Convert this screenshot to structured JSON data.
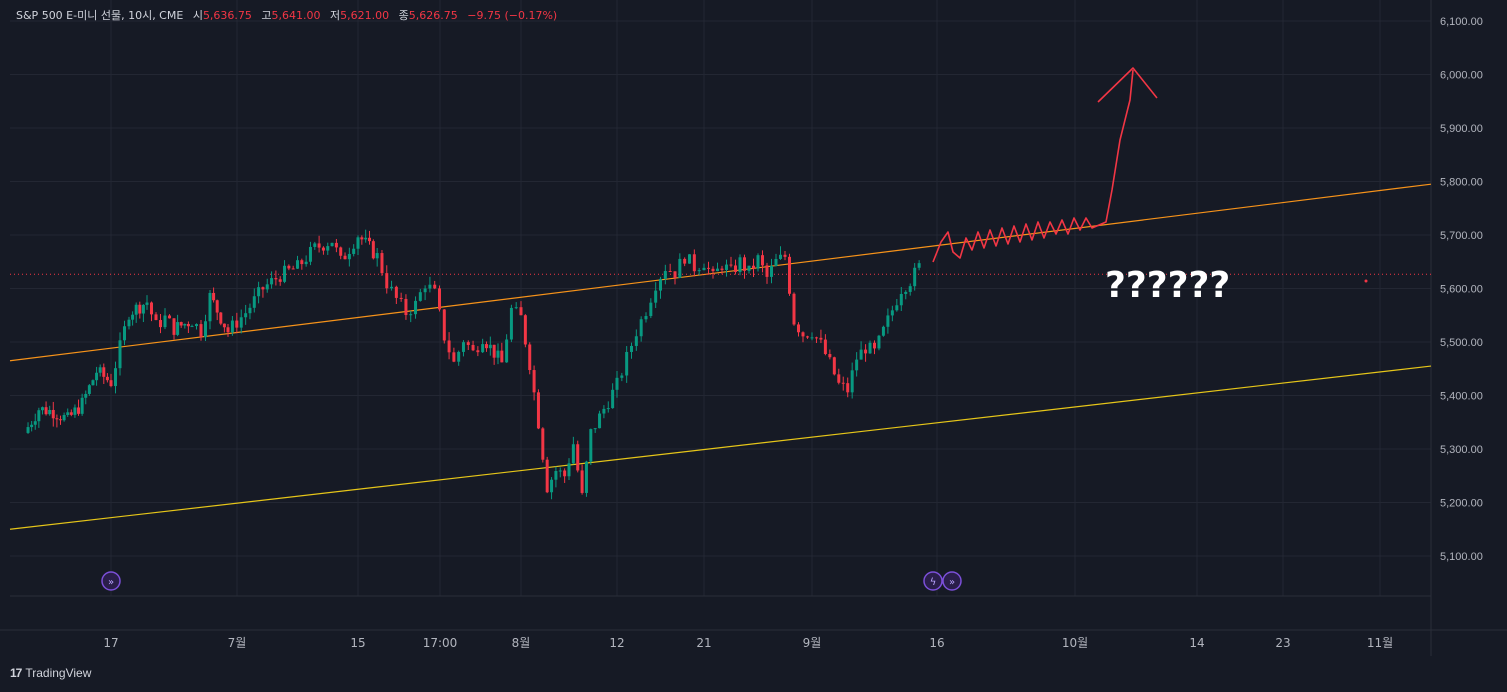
{
  "legend": {
    "symbol": "S&P 500 E-미니 선물, 10시, CME",
    "open_label": "시",
    "open": "5,636.75",
    "high_label": "고",
    "high": "5,641.00",
    "low_label": "저",
    "low": "5,621.00",
    "close_label": "종",
    "close": "5,626.75",
    "change": "−9.75 (−0.17%)"
  },
  "annotation_text": "??????",
  "footer": {
    "brand": "TradingView"
  },
  "colors": {
    "background": "#161a25",
    "up": "#089981",
    "down": "#f23645",
    "upper_trendline": "#f7931a",
    "lower_trendline": "#e6c619",
    "drawing": "#f23645",
    "grid": "#232733",
    "event_marker": "#7b4fd8"
  },
  "chart_data": {
    "type": "candlestick",
    "title": "S&P 500 E-미니 선물, 10시, CME",
    "x_ticks": [
      "17",
      "7월",
      "15",
      "17:00",
      "8월",
      "12",
      "21",
      "9월",
      "16",
      "10월",
      "14",
      "23",
      "11월"
    ],
    "y_ticks": [
      "6,100.00",
      "6,000.00",
      "5,900.00",
      "5,800.00",
      "5,700.00",
      "5,600.00",
      "5,500.00",
      "5,400.00",
      "5,300.00",
      "5,200.00",
      "5,100.00"
    ],
    "ylim": [
      5060,
      6120
    ],
    "last_price": 5626.75,
    "grid": true,
    "close_path": [
      [
        "2024-06-11",
        5330
      ],
      [
        "2024-06-12",
        5375
      ],
      [
        "2024-06-13",
        5370
      ],
      [
        "2024-06-14",
        5355
      ],
      [
        "2024-06-15",
        5385
      ],
      [
        "2024-06-16",
        5445
      ],
      [
        "2024-06-17",
        5425
      ],
      [
        "2024-06-18",
        5490
      ],
      [
        "2024-06-19",
        5555
      ],
      [
        "2024-06-21",
        5575
      ],
      [
        "2024-06-22",
        5530
      ],
      [
        "2024-06-23",
        5545
      ],
      [
        "2024-06-24",
        5525
      ],
      [
        "2024-06-26",
        5540
      ],
      [
        "2024-06-27",
        5520
      ],
      [
        "2024-06-28",
        5585
      ],
      [
        "2024-06-30",
        5520
      ],
      [
        "2024-07-02",
        5555
      ],
      [
        "2024-07-04",
        5600
      ],
      [
        "2024-07-06",
        5625
      ],
      [
        "2024-07-08",
        5640
      ],
      [
        "2024-07-10",
        5675
      ],
      [
        "2024-07-12",
        5690
      ],
      [
        "2024-07-13",
        5650
      ],
      [
        "2024-07-15",
        5700
      ],
      [
        "2024-07-17",
        5660
      ],
      [
        "2024-07-18",
        5610
      ],
      [
        "2024-07-19",
        5580
      ],
      [
        "2024-07-20",
        5555
      ],
      [
        "2024-07-21",
        5570
      ],
      [
        "2024-07-22",
        5610
      ],
      [
        "2024-07-23",
        5590
      ],
      [
        "2024-07-24",
        5510
      ],
      [
        "2024-07-25",
        5460
      ],
      [
        "2024-07-26",
        5505
      ],
      [
        "2024-07-27",
        5480
      ],
      [
        "2024-07-28",
        5510
      ],
      [
        "2024-07-30",
        5460
      ],
      [
        "2024-07-31",
        5560
      ],
      [
        "2024-08-01",
        5545
      ],
      [
        "2024-08-02",
        5460
      ],
      [
        "2024-08-03",
        5350
      ],
      [
        "2024-08-04",
        5230
      ],
      [
        "2024-08-05",
        5260
      ],
      [
        "2024-08-06",
        5250
      ],
      [
        "2024-08-07",
        5310
      ],
      [
        "2024-08-08",
        5210
      ],
      [
        "2024-08-09",
        5330
      ],
      [
        "2024-08-10",
        5360
      ],
      [
        "2024-08-11",
        5390
      ],
      [
        "2024-08-12",
        5420
      ],
      [
        "2024-08-13",
        5470
      ],
      [
        "2024-08-14",
        5520
      ],
      [
        "2024-08-15",
        5560
      ],
      [
        "2024-08-16",
        5610
      ],
      [
        "2024-08-17",
        5640
      ],
      [
        "2024-08-18",
        5630
      ],
      [
        "2024-08-19",
        5660
      ],
      [
        "2024-08-20",
        5640
      ],
      [
        "2024-08-21",
        5650
      ],
      [
        "2024-08-22",
        5620
      ],
      [
        "2024-08-23",
        5645
      ],
      [
        "2024-08-24",
        5630
      ],
      [
        "2024-08-25",
        5650
      ],
      [
        "2024-08-26",
        5630
      ],
      [
        "2024-08-27",
        5655
      ],
      [
        "2024-08-28",
        5620
      ],
      [
        "2024-08-29",
        5650
      ],
      [
        "2024-08-30",
        5660
      ],
      [
        "2024-08-31",
        5540
      ],
      [
        "2024-09-01",
        5515
      ],
      [
        "2024-09-02",
        5520
      ],
      [
        "2024-09-03",
        5495
      ],
      [
        "2024-09-04",
        5460
      ],
      [
        "2024-09-05",
        5420
      ],
      [
        "2024-09-06",
        5410
      ],
      [
        "2024-09-07",
        5470
      ],
      [
        "2024-09-08",
        5490
      ],
      [
        "2024-09-09",
        5480
      ],
      [
        "2024-09-10",
        5520
      ],
      [
        "2024-09-11",
        5560
      ],
      [
        "2024-09-12",
        5600
      ],
      [
        "2024-09-13",
        5615
      ],
      [
        "2024-09-14",
        5640
      ]
    ],
    "trendlines": [
      {
        "color": "#f7931a",
        "points": [
          [
            "2024-06-10",
            5465
          ],
          [
            "2024-11-20",
            5795
          ]
        ]
      },
      {
        "color": "#e6c619",
        "points": [
          [
            "2024-06-10",
            5150
          ],
          [
            "2024-11-20",
            5455
          ]
        ]
      }
    ]
  }
}
